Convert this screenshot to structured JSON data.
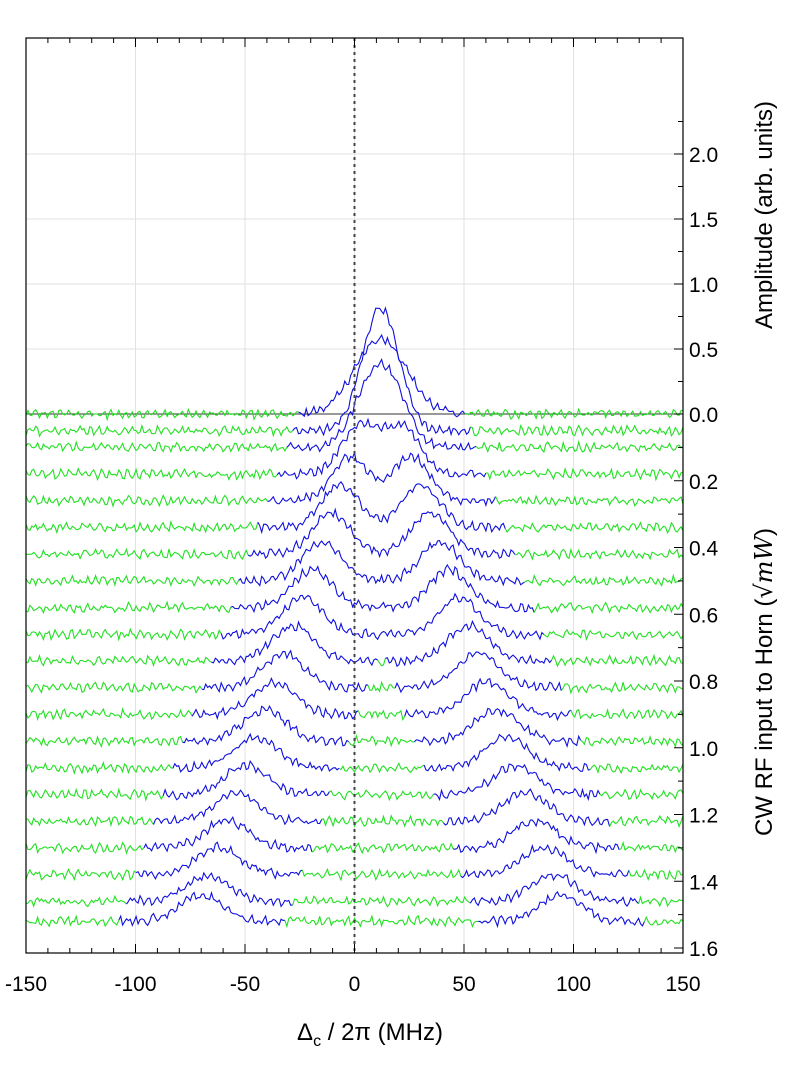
{
  "chart_data": {
    "type": "line",
    "title": "",
    "x_axis": {
      "label_symbol": "Δ",
      "label_subscript": "c",
      "label_rest": " / 2π (MHz)",
      "range": [
        -150,
        150
      ],
      "major_ticks": [
        -150,
        -100,
        -50,
        0,
        50,
        100,
        150
      ],
      "tick_labels": [
        "-150",
        "-100",
        "-50",
        "0",
        "50",
        "100",
        "150"
      ],
      "minor_step": 10,
      "grid": true
    },
    "y_axis_upper": {
      "label": "Amplitude (arb. units)",
      "range": [
        0,
        2.4
      ],
      "ticks": [
        0.5,
        1.0,
        1.5,
        2.0
      ],
      "tick_labels": [
        "0.5",
        "1.0",
        "1.5",
        "2.0"
      ],
      "grid": true
    },
    "y_axis_lower": {
      "label_text": "CW RF input to Horn (",
      "label_math": "√mW",
      "label_close": ")",
      "range": [
        0,
        1.6
      ],
      "ticks": [
        0.0,
        0.2,
        0.4,
        0.6,
        0.8,
        1.0,
        1.2,
        1.4,
        1.6
      ],
      "tick_labels": [
        "0.0",
        "0.2",
        "0.4",
        "0.6",
        "0.8",
        "1.0",
        "1.2",
        "1.4",
        "1.6"
      ],
      "inverted": true
    },
    "reference_line": {
      "x": 0,
      "style": "dotted"
    },
    "baseline_amplitude": 0.0,
    "colors": {
      "blue": "#1010dd",
      "green": "#22e022",
      "grid": "#e2e2e2",
      "axis": "#000000",
      "dotted": "#444444"
    },
    "trace_model": {
      "description": "Waterfall of spectra; each trace offset to its RF input level; blue segments near Autler-Townes peaks, green elsewhere",
      "peak_splitting_MHz_per_sqrt_mW": 108,
      "peak_shift_MHz": 12,
      "peak_width_MHz": 11,
      "noise_amplitude": 0.035
    },
    "series": [
      {
        "rf": 0.0,
        "peak_amplitude": 0.58
      },
      {
        "rf": 0.05,
        "peak_amplitude": 0.5
      },
      {
        "rf": 0.1,
        "peak_amplitude": 0.4
      },
      {
        "rf": 0.18,
        "peak_amplitude": 0.36
      },
      {
        "rf": 0.26,
        "peak_amplitude": 0.34
      },
      {
        "rf": 0.34,
        "peak_amplitude": 0.33
      },
      {
        "rf": 0.42,
        "peak_amplitude": 0.32
      },
      {
        "rf": 0.5,
        "peak_amplitude": 0.3
      },
      {
        "rf": 0.58,
        "peak_amplitude": 0.29
      },
      {
        "rf": 0.66,
        "peak_amplitude": 0.28
      },
      {
        "rf": 0.74,
        "peak_amplitude": 0.27
      },
      {
        "rf": 0.82,
        "peak_amplitude": 0.26
      },
      {
        "rf": 0.9,
        "peak_amplitude": 0.25
      },
      {
        "rf": 0.98,
        "peak_amplitude": 0.24
      },
      {
        "rf": 1.06,
        "peak_amplitude": 0.23
      },
      {
        "rf": 1.14,
        "peak_amplitude": 0.22
      },
      {
        "rf": 1.22,
        "peak_amplitude": 0.22
      },
      {
        "rf": 1.3,
        "peak_amplitude": 0.21
      },
      {
        "rf": 1.38,
        "peak_amplitude": 0.21
      },
      {
        "rf": 1.46,
        "peak_amplitude": 0.2
      },
      {
        "rf": 1.52,
        "peak_amplitude": 0.2
      }
    ]
  }
}
